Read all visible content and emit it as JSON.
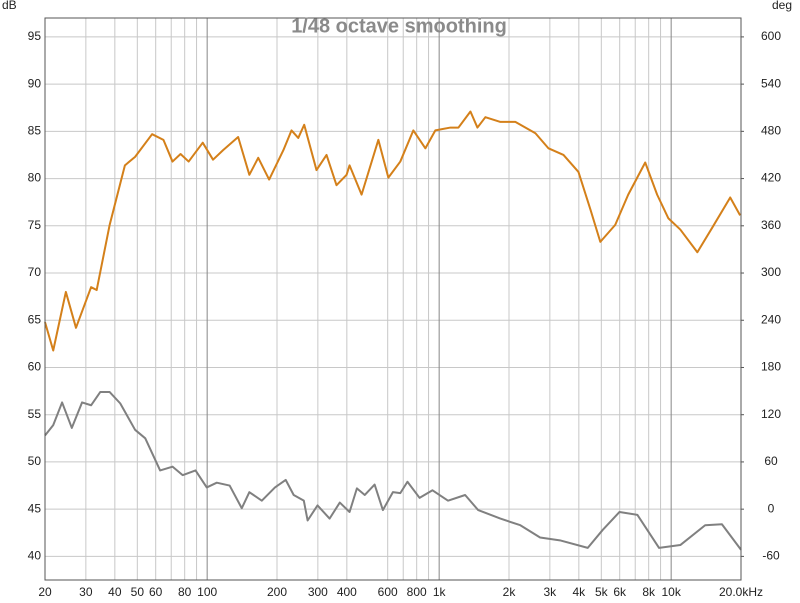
{
  "chart_data": {
    "type": "line",
    "title": "1/48 octave smoothing",
    "y_label": "dB",
    "y2_label": "deg",
    "xscale": "log",
    "grid": true,
    "xlim": [
      20,
      20000
    ],
    "ylim": [
      37.5,
      97
    ],
    "y2lim": [
      -90,
      624
    ],
    "xticks": [
      20,
      30,
      40,
      50,
      60,
      80,
      100,
      200,
      300,
      400,
      600,
      800,
      {
        "value": 1000,
        "label": "1k"
      },
      {
        "value": 2000,
        "label": "2k"
      },
      {
        "value": 3000,
        "label": "3k"
      },
      {
        "value": 4000,
        "label": "4k"
      },
      {
        "value": 5000,
        "label": "5k"
      },
      {
        "value": 6000,
        "label": "6k"
      },
      {
        "value": 8000,
        "label": "8k"
      },
      {
        "value": 10000,
        "label": "10k"
      },
      {
        "value": 20000,
        "label": "20.0kHz"
      }
    ],
    "minor_xticks": [
      70,
      90,
      700,
      900,
      7000,
      9000
    ],
    "yticks": [
      40,
      45,
      50,
      55,
      60,
      65,
      70,
      75,
      80,
      85,
      90,
      95
    ],
    "y2ticks": [
      -60,
      0,
      60,
      120,
      180,
      240,
      300,
      360,
      420,
      480,
      540,
      600
    ],
    "series": [
      {
        "color": "#d4801a",
        "x": [
          20,
          21.7,
          24.6,
          27.2,
          31.6,
          33.4,
          38,
          44.2,
          48.9,
          57.9,
          64.8,
          70.9,
          76.8,
          83.2,
          95.7,
          106,
          117,
          136,
          152,
          166,
          185,
          213,
          231,
          247,
          262,
          296,
          327,
          361,
          399,
          411,
          463,
          547,
          604,
          680,
          774,
          872,
          963,
          1118,
          1211,
          1364,
          1462,
          1582,
          1836,
          2130,
          2600,
          2960,
          3435,
          3985,
          4490,
          4950,
          5740,
          6530,
          7730,
          8700,
          9720,
          10950,
          12970,
          15030,
          17970,
          19830
        ],
        "values": [
          64.8,
          61.8,
          68.0,
          64.2,
          68.5,
          68.2,
          75.1,
          81.4,
          82.3,
          84.7,
          84.1,
          81.8,
          82.6,
          81.8,
          83.8,
          82.0,
          83.0,
          84.4,
          80.4,
          82.2,
          79.9,
          83.0,
          85.1,
          84.3,
          85.7,
          80.9,
          82.5,
          79.3,
          80.4,
          81.4,
          78.3,
          84.1,
          80.1,
          81.8,
          85.1,
          83.2,
          85.1,
          85.4,
          85.4,
          87.1,
          85.4,
          86.5,
          86.0,
          86.0,
          84.8,
          83.2,
          82.5,
          80.7,
          76.7,
          73.3,
          75.1,
          78.3,
          81.7,
          78.3,
          75.8,
          74.6,
          72.2,
          74.8,
          78.0,
          76.1
        ]
      },
      {
        "color": "#808080",
        "x": [
          20,
          21.7,
          23.7,
          26.1,
          28.9,
          31.6,
          34.6,
          38,
          42.2,
          48.9,
          54.1,
          62.7,
          70.9,
          78.4,
          89.1,
          99.6,
          110,
          125,
          141,
          152,
          172,
          196,
          218,
          236,
          261,
          271,
          299,
          337,
          373,
          411,
          442,
          478,
          527,
          572,
          632,
          680,
          730,
          823,
          936,
          1092,
          1294,
          1473,
          1836,
          2238,
          2723,
          3314,
          4370,
          5068,
          5990,
          7150,
          8870,
          10950,
          14010,
          16550,
          20000
        ],
        "values": [
          52.8,
          53.9,
          56.3,
          53.6,
          56.3,
          56.0,
          57.4,
          57.4,
          56.2,
          53.4,
          52.5,
          49.1,
          49.5,
          48.6,
          49.1,
          47.3,
          47.8,
          47.5,
          45.1,
          46.8,
          45.9,
          47.3,
          48.1,
          46.5,
          45.9,
          43.8,
          45.4,
          44.0,
          45.7,
          44.7,
          47.2,
          46.5,
          47.6,
          44.9,
          46.8,
          46.7,
          47.9,
          46.2,
          47.0,
          45.9,
          46.5,
          44.9,
          44.0,
          43.3,
          42.0,
          41.7,
          40.9,
          42.8,
          44.7,
          44.4,
          40.9,
          41.2,
          43.3,
          43.4,
          40.7
        ]
      }
    ]
  }
}
